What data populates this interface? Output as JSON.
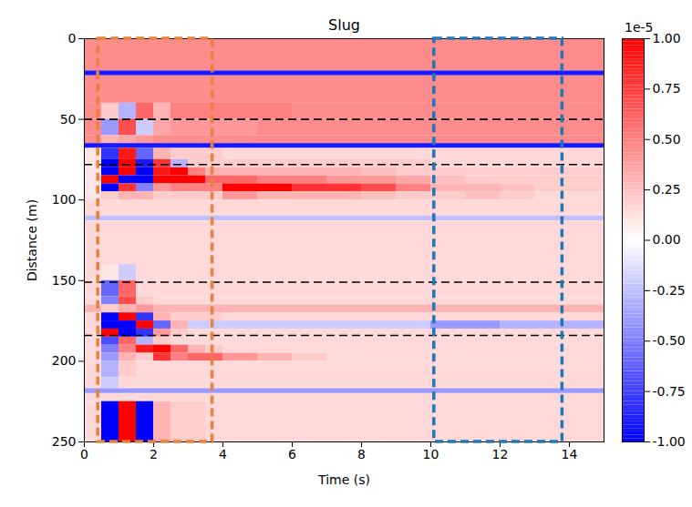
{
  "chart_data": {
    "type": "heatmap",
    "title": "Slug",
    "x_label": "Time (s)",
    "y_label": "Distance (m)",
    "xlim": [
      0,
      15
    ],
    "ylim": [
      0,
      250
    ],
    "xticks": [
      0,
      2,
      4,
      6,
      8,
      10,
      12,
      14
    ],
    "yticks": [
      0,
      50,
      100,
      150,
      200,
      250
    ],
    "x_edges": [
      0,
      0.5,
      1,
      1.5,
      2,
      2.5,
      3,
      3.5,
      4,
      5,
      6,
      7,
      8,
      9,
      10,
      11,
      12,
      13,
      14,
      15
    ],
    "y_edges": [
      0,
      20,
      23,
      40,
      50,
      60,
      65,
      68,
      75,
      80,
      85,
      90,
      95,
      100,
      110,
      113,
      140,
      150,
      160,
      165,
      170,
      175,
      180,
      185,
      190,
      195,
      200,
      210,
      217,
      220,
      225,
      250
    ],
    "values": [
      [
        0.45,
        0.45,
        0.45,
        0.45,
        0.45,
        0.45,
        0.45,
        0.45,
        0.45,
        0.45,
        0.45,
        0.45,
        0.45,
        0.45,
        0.45,
        0.45,
        0.45,
        0.45,
        0.45
      ],
      [
        -0.9,
        -0.9,
        -0.9,
        -0.9,
        -0.9,
        -0.9,
        -0.9,
        -0.9,
        -0.9,
        -0.9,
        -0.9,
        -0.9,
        -0.9,
        -0.9,
        -0.9,
        -0.9,
        -0.9,
        -0.9,
        -0.9
      ],
      [
        0.45,
        0.45,
        0.45,
        0.45,
        0.45,
        0.45,
        0.45,
        0.45,
        0.45,
        0.45,
        0.45,
        0.45,
        0.45,
        0.45,
        0.45,
        0.45,
        0.45,
        0.45,
        0.45
      ],
      [
        0.45,
        0.2,
        -0.3,
        0.6,
        0.3,
        0.5,
        0.5,
        0.5,
        0.5,
        0.5,
        0.45,
        0.45,
        0.45,
        0.45,
        0.45,
        0.45,
        0.45,
        0.45,
        0.45
      ],
      [
        0.45,
        -0.4,
        0.7,
        -0.2,
        0.35,
        0.4,
        0.4,
        0.4,
        0.4,
        0.45,
        0.45,
        0.45,
        0.45,
        0.45,
        0.45,
        0.45,
        0.45,
        0.45,
        0.45
      ],
      [
        0.45,
        0.3,
        0.35,
        0.4,
        0.45,
        0.45,
        0.45,
        0.45,
        0.45,
        0.45,
        0.45,
        0.45,
        0.45,
        0.45,
        0.45,
        0.45,
        0.45,
        0.45,
        0.45
      ],
      [
        -0.9,
        -0.9,
        -0.9,
        -0.9,
        -0.9,
        -0.9,
        -0.9,
        -0.9,
        -0.9,
        -0.9,
        -0.9,
        -0.9,
        -0.9,
        -0.9,
        -0.9,
        -0.9,
        -0.9,
        -0.9,
        -0.9
      ],
      [
        0.1,
        -0.8,
        0.9,
        -0.6,
        0.3,
        0.2,
        0.2,
        0.2,
        0.15,
        0.15,
        0.15,
        0.15,
        0.15,
        0.15,
        0.15,
        0.15,
        0.15,
        0.15,
        0.15
      ],
      [
        0.1,
        -1,
        1,
        -0.9,
        0.8,
        -0.3,
        0.2,
        0.2,
        0.2,
        0.2,
        0.2,
        0.2,
        0.2,
        0.2,
        0.15,
        0.15,
        0.15,
        0.15,
        0.15
      ],
      [
        0.1,
        -1,
        1,
        -1,
        0.9,
        1,
        0.5,
        0.3,
        0.3,
        0.3,
        0.3,
        0.3,
        0.25,
        0.2,
        0.2,
        0.2,
        0.2,
        0.2,
        0.2
      ],
      [
        0.1,
        1,
        -1,
        -1,
        1,
        1,
        1,
        0.6,
        0.6,
        0.5,
        0.5,
        0.4,
        0.4,
        0.35,
        0.25,
        0.2,
        0.2,
        0.2,
        0.2
      ],
      [
        0.1,
        -1,
        0.8,
        -0.5,
        0.4,
        0.5,
        0.5,
        0.5,
        1,
        1,
        0.8,
        0.8,
        0.7,
        0.5,
        0.3,
        0.3,
        0.25,
        0.2,
        0.2
      ],
      [
        0.1,
        0.2,
        0.3,
        0.3,
        0.2,
        0.2,
        0.2,
        0.2,
        0.4,
        0.3,
        0.3,
        0.3,
        0.25,
        0.2,
        0.2,
        0.25,
        0.2,
        0.15,
        0.15
      ],
      [
        0.15,
        0.15,
        0.15,
        0.15,
        0.15,
        0.15,
        0.15,
        0.15,
        0.15,
        0.15,
        0.15,
        0.15,
        0.15,
        0.15,
        0.15,
        0.15,
        0.15,
        0.15,
        0.15
      ],
      [
        -0.25,
        -0.25,
        -0.25,
        -0.25,
        -0.25,
        -0.25,
        -0.25,
        -0.25,
        -0.25,
        -0.25,
        -0.25,
        -0.25,
        -0.25,
        -0.25,
        -0.25,
        -0.25,
        -0.25,
        -0.25,
        -0.25
      ],
      [
        0.15,
        0.15,
        0.15,
        0.15,
        0.15,
        0.15,
        0.15,
        0.15,
        0.15,
        0.15,
        0.15,
        0.15,
        0.15,
        0.15,
        0.15,
        0.15,
        0.15,
        0.15,
        0.15
      ],
      [
        0.15,
        0.1,
        -0.2,
        0.15,
        0.15,
        0.15,
        0.15,
        0.15,
        0.15,
        0.15,
        0.15,
        0.15,
        0.15,
        0.15,
        0.15,
        0.15,
        0.15,
        0.15,
        0.15
      ],
      [
        0.15,
        -0.6,
        0.6,
        0.15,
        0.15,
        0.15,
        0.15,
        0.15,
        0.15,
        0.15,
        0.15,
        0.15,
        0.15,
        0.15,
        0.15,
        0.15,
        0.15,
        0.15,
        0.15
      ],
      [
        0.15,
        -0.5,
        0.7,
        0.2,
        0.15,
        0.15,
        0.15,
        0.15,
        0.15,
        0.15,
        0.15,
        0.15,
        0.15,
        0.15,
        0.15,
        0.15,
        0.15,
        0.15,
        0.15
      ],
      [
        0.3,
        0.2,
        0.3,
        0.4,
        0.3,
        0.3,
        0.3,
        0.3,
        0.3,
        0.3,
        0.3,
        0.3,
        0.3,
        0.3,
        0.3,
        0.3,
        0.3,
        0.3,
        0.3
      ],
      [
        0.15,
        -1,
        1,
        -0.8,
        0.3,
        0.2,
        0.2,
        0.2,
        0.15,
        0.15,
        0.15,
        0.15,
        0.15,
        0.15,
        0.15,
        0.15,
        0.15,
        0.15,
        0.15
      ],
      [
        0.15,
        -1,
        -1,
        1,
        -0.6,
        0.3,
        -0.2,
        -0.2,
        -0.2,
        -0.2,
        -0.2,
        -0.2,
        -0.2,
        -0.2,
        -0.4,
        -0.4,
        -0.3,
        -0.3,
        -0.3
      ],
      [
        0.15,
        1,
        -1,
        -0.8,
        0.4,
        0.2,
        0.15,
        0.15,
        0.15,
        0.15,
        0.15,
        0.15,
        0.15,
        0.15,
        0.15,
        0.15,
        0.15,
        0.15,
        0.15
      ],
      [
        0.15,
        -0.7,
        0.6,
        -0.3,
        0.2,
        0.15,
        0.15,
        0.15,
        0.15,
        0.15,
        0.15,
        0.15,
        0.15,
        0.15,
        0.15,
        0.15,
        0.15,
        0.15,
        0.15
      ],
      [
        0.15,
        -0.5,
        0.5,
        0.9,
        1,
        0.6,
        0.3,
        0.2,
        0.15,
        0.15,
        0.15,
        0.15,
        0.15,
        0.15,
        0.15,
        0.15,
        0.15,
        0.15,
        0.15
      ],
      [
        0.15,
        -0.4,
        0.3,
        0.2,
        0.8,
        0.5,
        0.6,
        0.6,
        0.4,
        0.3,
        0.2,
        0.15,
        0.15,
        0.15,
        0.15,
        0.15,
        0.15,
        0.15,
        0.15
      ],
      [
        0.15,
        -0.3,
        0.2,
        0.15,
        0.15,
        0.15,
        0.15,
        0.15,
        0.15,
        0.15,
        0.15,
        0.15,
        0.15,
        0.15,
        0.15,
        0.15,
        0.15,
        0.15,
        0.15
      ],
      [
        0.15,
        -0.2,
        0.15,
        0.15,
        0.15,
        0.15,
        0.15,
        0.15,
        0.15,
        0.15,
        0.15,
        0.15,
        0.15,
        0.15,
        0.15,
        0.15,
        0.15,
        0.15,
        0.15
      ],
      [
        -0.4,
        -0.4,
        -0.4,
        -0.4,
        -0.4,
        -0.4,
        -0.4,
        -0.4,
        -0.4,
        -0.4,
        -0.4,
        -0.4,
        -0.4,
        -0.4,
        -0.4,
        -0.4,
        -0.4,
        -0.4,
        -0.4
      ],
      [
        0.15,
        0.15,
        0.15,
        0.15,
        0.15,
        0.15,
        0.15,
        0.15,
        0.15,
        0.15,
        0.15,
        0.15,
        0.15,
        0.15,
        0.15,
        0.15,
        0.15,
        0.15,
        0.15
      ],
      [
        0.15,
        -1,
        1,
        -1,
        0.3,
        0.2,
        0.2,
        0.15,
        0.15,
        0.15,
        0.15,
        0.15,
        0.15,
        0.15,
        0.15,
        0.15,
        0.15,
        0.15,
        0.15
      ]
    ],
    "colorbar": {
      "label": "1e-5",
      "range": [
        -1,
        1
      ],
      "colors": [
        "#0000ff",
        "#ffffff",
        "#ff0000"
      ],
      "ticks": [
        {
          "value": 1,
          "label": "1.00"
        },
        {
          "value": 0.75,
          "label": "0.75"
        },
        {
          "value": 0.5,
          "label": "0.50"
        },
        {
          "value": 0.25,
          "label": "0.25"
        },
        {
          "value": 0,
          "label": "0.00"
        },
        {
          "value": -0.25,
          "label": "-0.25"
        },
        {
          "value": -0.5,
          "label": "-0.50"
        },
        {
          "value": -0.75,
          "label": "-0.75"
        },
        {
          "value": -1,
          "label": "-1.00"
        }
      ]
    },
    "boxes": [
      {
        "x": [
          0.4,
          3.7
        ],
        "y": [
          0,
          250
        ],
        "color": "#e8823a",
        "line_style": "dashed"
      },
      {
        "x": [
          10.1,
          13.8
        ],
        "y": [
          0,
          250
        ],
        "color": "#1f77b4",
        "line_style": "dashed"
      }
    ],
    "hlines": {
      "values": [
        50,
        78,
        151,
        184
      ],
      "color": "#000000",
      "line_style": "dashed"
    }
  }
}
